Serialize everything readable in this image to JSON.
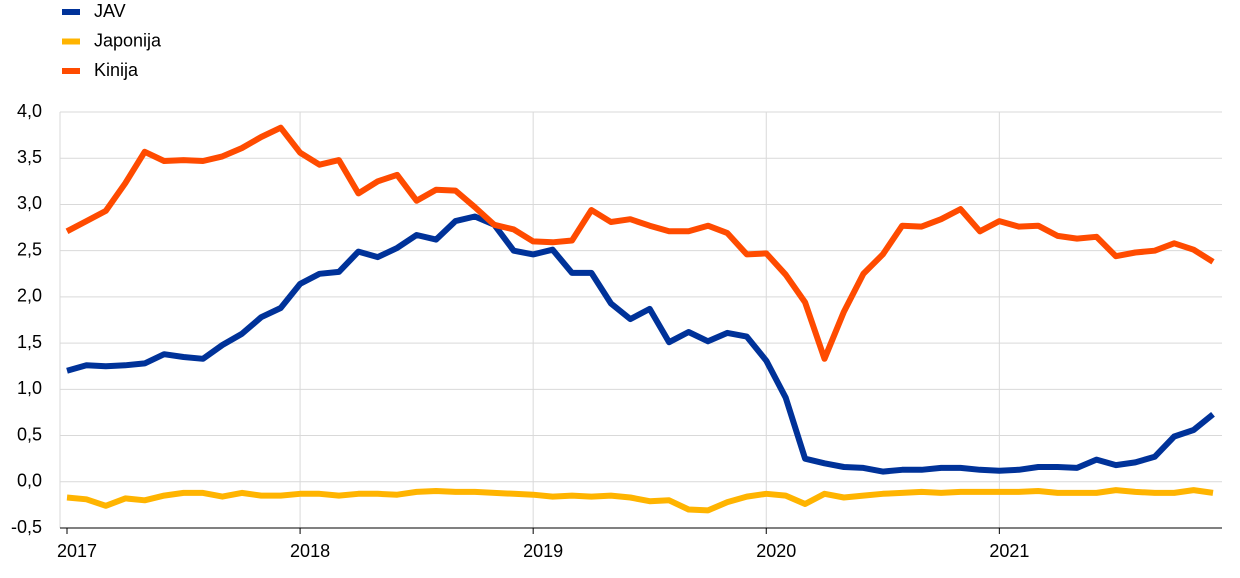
{
  "chart_data": {
    "type": "line",
    "categories": [
      "2017",
      null,
      null,
      null,
      null,
      null,
      null,
      null,
      null,
      null,
      null,
      null,
      "2018",
      null,
      null,
      null,
      null,
      null,
      null,
      null,
      null,
      null,
      null,
      null,
      "2019",
      null,
      null,
      null,
      null,
      null,
      null,
      null,
      null,
      null,
      null,
      null,
      "2020",
      null,
      null,
      null,
      null,
      null,
      null,
      null,
      null,
      null,
      null,
      null,
      "2021",
      null,
      null,
      null,
      null,
      null,
      null,
      null,
      null,
      null,
      null,
      null
    ],
    "series": [
      {
        "name": "JAV",
        "color": "#003299",
        "values": [
          1.2,
          1.26,
          1.25,
          1.26,
          1.28,
          1.38,
          1.35,
          1.33,
          1.48,
          1.6,
          1.78,
          1.88,
          2.14,
          2.25,
          2.27,
          2.49,
          2.43,
          2.53,
          2.67,
          2.62,
          2.82,
          2.87,
          2.78,
          2.5,
          2.46,
          2.51,
          2.26,
          2.26,
          1.93,
          1.76,
          1.87,
          1.51,
          1.62,
          1.52,
          1.61,
          1.57,
          1.31,
          0.91,
          0.25,
          0.2,
          0.16,
          0.15,
          0.11,
          0.13,
          0.13,
          0.15,
          0.15,
          0.13,
          0.12,
          0.13,
          0.16,
          0.16,
          0.15,
          0.24,
          0.18,
          0.21,
          0.27,
          0.49,
          0.56,
          0.73
        ]
      },
      {
        "name": "Japonija",
        "color": "#ffb400",
        "values": [
          -0.17,
          -0.19,
          -0.26,
          -0.18,
          -0.2,
          -0.15,
          -0.12,
          -0.12,
          -0.16,
          -0.12,
          -0.15,
          -0.15,
          -0.13,
          -0.13,
          -0.15,
          -0.13,
          -0.13,
          -0.14,
          -0.11,
          -0.1,
          -0.11,
          -0.11,
          -0.12,
          -0.13,
          -0.14,
          -0.16,
          -0.15,
          -0.16,
          -0.15,
          -0.17,
          -0.21,
          -0.2,
          -0.3,
          -0.31,
          -0.22,
          -0.16,
          -0.13,
          -0.15,
          -0.24,
          -0.13,
          -0.17,
          -0.15,
          -0.13,
          -0.12,
          -0.11,
          -0.12,
          -0.11,
          -0.11,
          -0.11,
          -0.11,
          -0.1,
          -0.12,
          -0.12,
          -0.12,
          -0.09,
          -0.11,
          -0.12,
          -0.12,
          -0.09,
          -0.12
        ]
      },
      {
        "name": "Kinija",
        "color": "#ff4b00",
        "values": [
          2.71,
          2.82,
          2.93,
          3.23,
          3.57,
          3.47,
          3.48,
          3.47,
          3.52,
          3.61,
          3.73,
          3.83,
          3.56,
          3.43,
          3.48,
          3.12,
          3.25,
          3.32,
          3.04,
          3.16,
          3.15,
          2.97,
          2.78,
          2.73,
          2.6,
          2.59,
          2.61,
          2.94,
          2.81,
          2.84,
          2.77,
          2.71,
          2.71,
          2.77,
          2.69,
          2.46,
          2.47,
          2.24,
          1.94,
          1.33,
          1.84,
          2.25,
          2.46,
          2.77,
          2.76,
          2.84,
          2.95,
          2.71,
          2.82,
          2.76,
          2.77,
          2.66,
          2.63,
          2.65,
          2.44,
          2.48,
          2.5,
          2.58,
          2.51,
          2.38
        ]
      }
    ],
    "ylim": [
      -0.5,
      4.0
    ],
    "yticks": [
      {
        "value": -0.5,
        "label": "-0,5"
      },
      {
        "value": 0,
        "label": "0,0"
      },
      {
        "value": 0.5,
        "label": "0,5"
      },
      {
        "value": 1,
        "label": "1,0"
      },
      {
        "value": 1.5,
        "label": "1,5"
      },
      {
        "value": 2,
        "label": "2,0"
      },
      {
        "value": 2.5,
        "label": "2,5"
      },
      {
        "value": 3,
        "label": "3,0"
      },
      {
        "value": 3.5,
        "label": "3,5"
      },
      {
        "value": 4,
        "label": "4,0"
      }
    ],
    "grid": true
  }
}
